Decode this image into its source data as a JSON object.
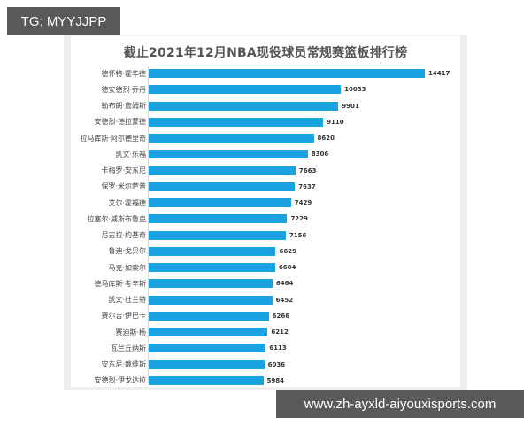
{
  "watermarks": {
    "top": "TG: MYYJJPP",
    "bottom": "www.zh-ayxld-aiyouxisports.com"
  },
  "colors": {
    "bar": "#1aa3e0",
    "panel_bg": "#efefef",
    "card_bg": "#ffffff"
  },
  "chart_data": {
    "type": "bar",
    "orientation": "horizontal",
    "title": "截止2021年12月NBA现役球员常规赛篮板排行榜",
    "xlabel": "",
    "ylabel": "",
    "grid": false,
    "legend": null,
    "categories": [
      "德怀特·霍华德",
      "德安德烈·乔丹",
      "勒布朗·詹姆斯",
      "安德烈·德拉蒙德",
      "拉马库斯·阿尔德里奇",
      "凯文·乐福",
      "卡梅罗·安东尼",
      "保罗·米尔萨普",
      "艾尔·霍福德",
      "拉塞尔·威斯布鲁克",
      "尼古拉·约基奇",
      "鲁迪·戈贝尔",
      "马克·加索尔",
      "德马库斯·考辛斯",
      "凯文·杜兰特",
      "赛尔吉·伊巴卡",
      "赛迪斯·杨",
      "瓦兰丘纳斯",
      "安东尼·戴维斯",
      "安德烈·伊戈达拉"
    ],
    "values": [
      14417,
      10033,
      9901,
      9110,
      8620,
      8306,
      7663,
      7637,
      7429,
      7229,
      7156,
      6629,
      6604,
      6464,
      6452,
      6266,
      6212,
      6113,
      6036,
      5984
    ],
    "xlim": [
      0,
      15000
    ]
  }
}
